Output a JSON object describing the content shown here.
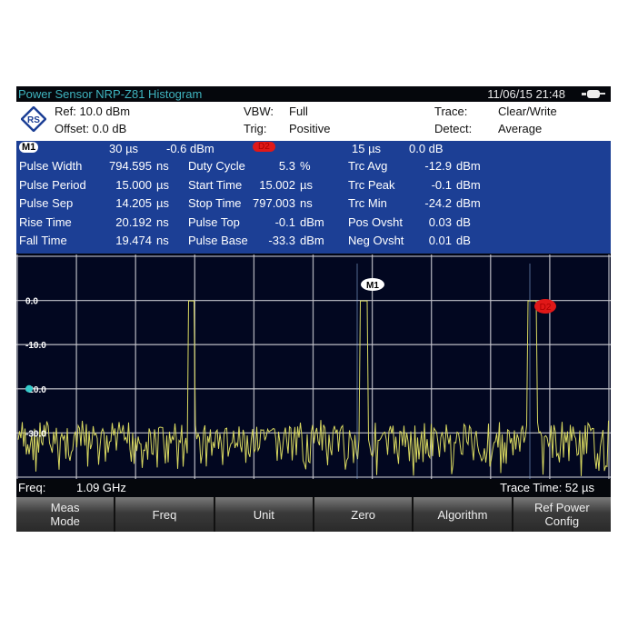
{
  "title_bar": {
    "title": "Power Sensor NRP-Z81 Histogram",
    "datetime": "11/06/15  21:48",
    "battery_icon": "battery-icon"
  },
  "info": {
    "ref": "Ref: 10.0 dBm",
    "offset": "Offset:  0.0 dB",
    "vbw_label": "VBW:",
    "vbw": "Full",
    "trig_label": "Trig:",
    "trig": "Positive",
    "trace_label": "Trace:",
    "trace": "Clear/Write",
    "detect_label": "Detect:",
    "detect": "Average"
  },
  "marker_row": {
    "m1": "M1",
    "m1_time": "30  µs",
    "m1_level": "-0.6  dBm",
    "d2": "D2",
    "d2_time": "15  µs",
    "d2_level": "0.0  dB"
  },
  "measurements": [
    [
      {
        "label": "Pulse Width",
        "value": "794.595",
        "unit": "ns"
      },
      {
        "label": "Duty Cycle",
        "value": "5.3",
        "unit": "%"
      },
      {
        "label": "Trc Avg",
        "value": "-12.9",
        "unit": "dBm"
      }
    ],
    [
      {
        "label": "Pulse Period",
        "value": "15.000",
        "unit": "µs"
      },
      {
        "label": "Start Time",
        "value": "15.002",
        "unit": "µs"
      },
      {
        "label": "Trc Peak",
        "value": "-0.1",
        "unit": "dBm"
      }
    ],
    [
      {
        "label": "Pulse Sep",
        "value": "14.205",
        "unit": "µs"
      },
      {
        "label": "Stop Time",
        "value": "797.003",
        "unit": "ns"
      },
      {
        "label": "Trc Min",
        "value": "-24.2",
        "unit": "dBm"
      }
    ],
    [
      {
        "label": "Rise Time",
        "value": "20.192",
        "unit": "ns"
      },
      {
        "label": "Pulse Top",
        "value": "-0.1",
        "unit": "dBm"
      },
      {
        "label": "Pos Ovsht",
        "value": "0.03",
        "unit": "dB"
      }
    ],
    [
      {
        "label": "Fall Time",
        "value": "19.474",
        "unit": "ns"
      },
      {
        "label": "Pulse Base",
        "value": "-33.3",
        "unit": "dBm"
      },
      {
        "label": "Neg Ovsht",
        "value": "0.01",
        "unit": "dB"
      }
    ]
  ],
  "plot": {
    "y_labels": [
      "0.0",
      "-10.0",
      "-20.0",
      "-30.0"
    ],
    "y_top_dbm": 10,
    "y_bottom_dbm": -40,
    "marker_m1": "M1",
    "marker_d2": "D2",
    "trace_color": "#d8d860",
    "grid_color": "#c8c8d0"
  },
  "status": {
    "freq_label": "Freq:",
    "freq": "1.09 GHz",
    "trace_time": "Trace Time:  52 µs"
  },
  "softkeys": [
    "Meas\nMode",
    "Freq",
    "Unit",
    "Zero",
    "Algorithm",
    "Ref Power\nConfig"
  ]
}
